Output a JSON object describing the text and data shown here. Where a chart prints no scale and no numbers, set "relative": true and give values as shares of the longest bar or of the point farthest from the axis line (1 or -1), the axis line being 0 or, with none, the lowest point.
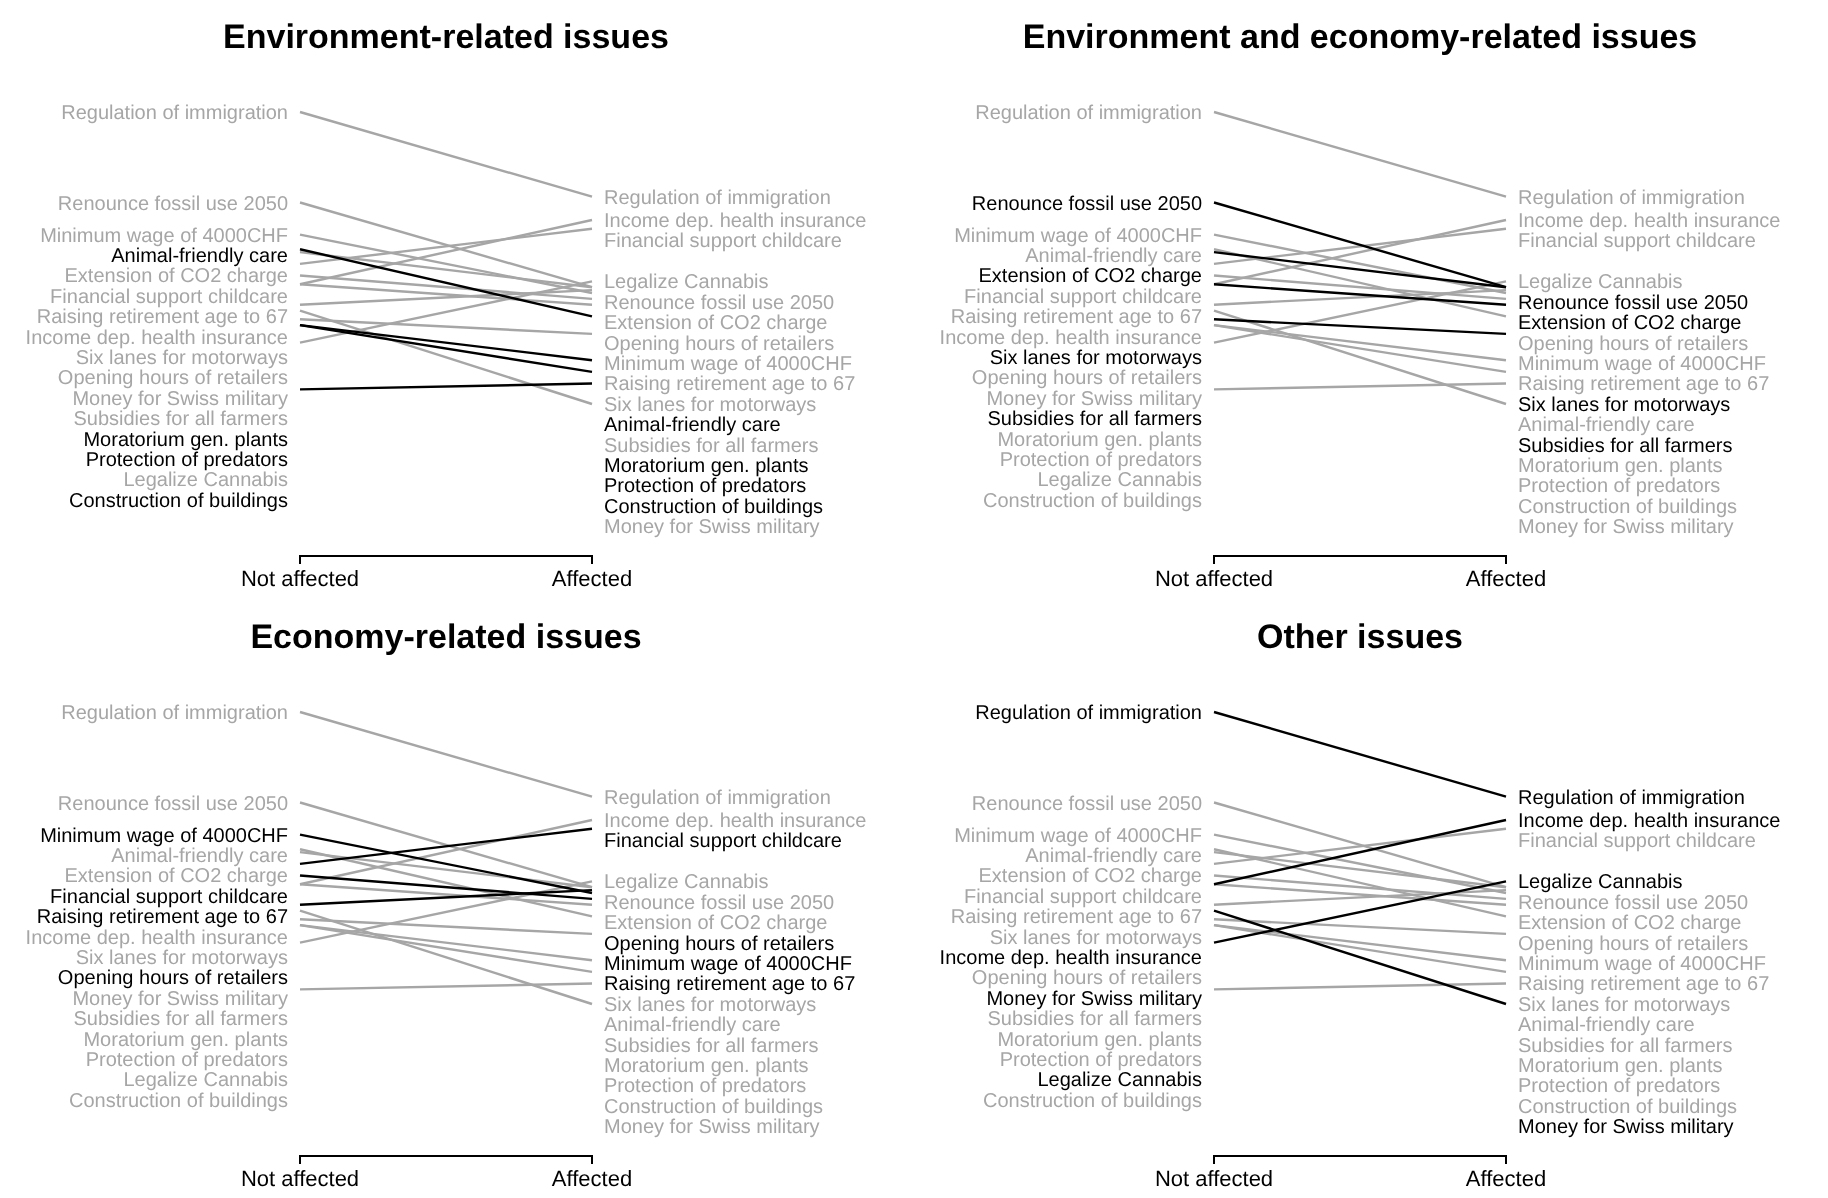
{
  "chart_data": [
    {
      "type": "line",
      "title": "Environment-related issues",
      "categories": [
        "Not affected",
        "Affected"
      ],
      "relative": true,
      "series": [
        {
          "name": "Regulation of immigration",
          "color": "#a6a6a6",
          "values": [
            1.0,
            0.71
          ]
        },
        {
          "name": "Renounce fossil use 2050",
          "color": "#a6a6a6",
          "values": [
            0.69,
            0.4
          ]
        },
        {
          "name": "Minimum wage of 4000CHF",
          "color": "#a6a6a6",
          "values": [
            0.58,
            0.38
          ]
        },
        {
          "name": "Extension of CO2 charge",
          "color": "#a6a6a6",
          "values": [
            0.52,
            0.4
          ]
        },
        {
          "name": "Financial support childcare",
          "color": "#a6a6a6",
          "values": [
            0.48,
            0.6
          ]
        },
        {
          "name": "Raising retirement age to 67",
          "color": "#a6a6a6",
          "values": [
            0.44,
            0.36
          ]
        },
        {
          "name": "Income dep. health insurance",
          "color": "#a6a6a6",
          "values": [
            0.41,
            0.63
          ]
        },
        {
          "name": "Six lanes for motorways",
          "color": "#a6a6a6",
          "values": [
            0.41,
            0.34
          ]
        },
        {
          "name": "Opening hours of retailers",
          "color": "#a6a6a6",
          "values": [
            0.34,
            0.39
          ]
        },
        {
          "name": "Subsidies for all farmers",
          "color": "#a6a6a6",
          "values": [
            0.29,
            0.24
          ]
        },
        {
          "name": "Money for Swiss military",
          "color": "#a6a6a6",
          "values": [
            0.32,
            0
          ]
        },
        {
          "name": "Legalize Cannabis",
          "color": "#a6a6a6",
          "values": [
            0.21,
            0.42
          ]
        },
        {
          "name": "Animal-friendly care",
          "color": "#000000",
          "values": [
            0.53,
            0.3
          ]
        },
        {
          "name": "Moratorium gen. plants",
          "color": "#000000",
          "values": [
            0.27,
            0.15
          ]
        },
        {
          "name": "Protection of predators",
          "color": "#000000",
          "values": [
            0.27,
            0.11
          ]
        },
        {
          "name": "Construction of buildings",
          "color": "#000000",
          "values": [
            0.05,
            0.07
          ]
        }
      ]
    },
    {
      "type": "line",
      "title": "Environment and economy-related issues",
      "categories": [
        "Not affected",
        "Affected"
      ],
      "relative": true,
      "series": [
        {
          "name": "Regulation of immigration",
          "color": "#a6a6a6",
          "values": [
            1.0,
            0.71
          ]
        },
        {
          "name": "Minimum wage of 4000CHF",
          "color": "#a6a6a6",
          "values": [
            0.58,
            0.38
          ]
        },
        {
          "name": "Financial support childcare",
          "color": "#a6a6a6",
          "values": [
            0.48,
            0.6
          ]
        },
        {
          "name": "Raising retirement age to 67",
          "color": "#a6a6a6",
          "values": [
            0.44,
            0.36
          ]
        },
        {
          "name": "Income dep. health insurance",
          "color": "#a6a6a6",
          "values": [
            0.41,
            0.63
          ]
        },
        {
          "name": "Animal-friendly care",
          "color": "#a6a6a6",
          "values": [
            0.53,
            0.3
          ]
        },
        {
          "name": "Opening hours of retailers",
          "color": "#a6a6a6",
          "values": [
            0.34,
            0.39
          ]
        },
        {
          "name": "Moratorium gen. plants",
          "color": "#a6a6a6",
          "values": [
            0.27,
            0.15
          ]
        },
        {
          "name": "Protection of predators",
          "color": "#a6a6a6",
          "values": [
            0.27,
            0.11
          ]
        },
        {
          "name": "Money for Swiss military",
          "color": "#a6a6a6",
          "values": [
            0.32,
            0
          ]
        },
        {
          "name": "Legalize Cannabis",
          "color": "#a6a6a6",
          "values": [
            0.21,
            0.42
          ]
        },
        {
          "name": "Construction of buildings",
          "color": "#a6a6a6",
          "values": [
            0.05,
            0.07
          ]
        },
        {
          "name": "Renounce fossil use 2050",
          "color": "#000000",
          "values": [
            0.69,
            0.4
          ]
        },
        {
          "name": "Extension of CO2 charge",
          "color": "#000000",
          "values": [
            0.52,
            0.4
          ]
        },
        {
          "name": "Six lanes for motorways",
          "color": "#000000",
          "values": [
            0.41,
            0.34
          ]
        },
        {
          "name": "Subsidies for all farmers",
          "color": "#000000",
          "values": [
            0.29,
            0.24
          ]
        }
      ]
    },
    {
      "type": "line",
      "title": "Economy-related issues",
      "categories": [
        "Not affected",
        "Affected"
      ],
      "relative": true,
      "series": [
        {
          "name": "Regulation of immigration",
          "color": "#a6a6a6",
          "values": [
            1.0,
            0.71
          ]
        },
        {
          "name": "Renounce fossil use 2050",
          "color": "#a6a6a6",
          "values": [
            0.69,
            0.4
          ]
        },
        {
          "name": "Extension of CO2 charge",
          "color": "#a6a6a6",
          "values": [
            0.52,
            0.4
          ]
        },
        {
          "name": "Income dep. health insurance",
          "color": "#a6a6a6",
          "values": [
            0.41,
            0.63
          ]
        },
        {
          "name": "Six lanes for motorways",
          "color": "#a6a6a6",
          "values": [
            0.41,
            0.34
          ]
        },
        {
          "name": "Animal-friendly care",
          "color": "#a6a6a6",
          "values": [
            0.53,
            0.3
          ]
        },
        {
          "name": "Moratorium gen. plants",
          "color": "#a6a6a6",
          "values": [
            0.27,
            0.15
          ]
        },
        {
          "name": "Protection of predators",
          "color": "#a6a6a6",
          "values": [
            0.27,
            0.11
          ]
        },
        {
          "name": "Subsidies for all farmers",
          "color": "#a6a6a6",
          "values": [
            0.29,
            0.24
          ]
        },
        {
          "name": "Money for Swiss military",
          "color": "#a6a6a6",
          "values": [
            0.32,
            0
          ]
        },
        {
          "name": "Legalize Cannabis",
          "color": "#a6a6a6",
          "values": [
            0.21,
            0.42
          ]
        },
        {
          "name": "Construction of buildings",
          "color": "#a6a6a6",
          "values": [
            0.05,
            0.07
          ]
        },
        {
          "name": "Minimum wage of 4000CHF",
          "color": "#000000",
          "values": [
            0.58,
            0.38
          ]
        },
        {
          "name": "Financial support childcare",
          "color": "#000000",
          "values": [
            0.48,
            0.6
          ]
        },
        {
          "name": "Raising retirement age to 67",
          "color": "#000000",
          "values": [
            0.44,
            0.36
          ]
        },
        {
          "name": "Opening hours of retailers",
          "color": "#000000",
          "values": [
            0.34,
            0.39
          ]
        }
      ]
    },
    {
      "type": "line",
      "title": "Other issues",
      "categories": [
        "Not affected",
        "Affected"
      ],
      "relative": true,
      "series": [
        {
          "name": "Renounce fossil use 2050",
          "color": "#a6a6a6",
          "values": [
            0.69,
            0.4
          ]
        },
        {
          "name": "Minimum wage of 4000CHF",
          "color": "#a6a6a6",
          "values": [
            0.58,
            0.38
          ]
        },
        {
          "name": "Extension of CO2 charge",
          "color": "#a6a6a6",
          "values": [
            0.52,
            0.4
          ]
        },
        {
          "name": "Financial support childcare",
          "color": "#a6a6a6",
          "values": [
            0.48,
            0.6
          ]
        },
        {
          "name": "Raising retirement age to 67",
          "color": "#a6a6a6",
          "values": [
            0.44,
            0.36
          ]
        },
        {
          "name": "Six lanes for motorways",
          "color": "#a6a6a6",
          "values": [
            0.41,
            0.34
          ]
        },
        {
          "name": "Animal-friendly care",
          "color": "#a6a6a6",
          "values": [
            0.53,
            0.3
          ]
        },
        {
          "name": "Opening hours of retailers",
          "color": "#a6a6a6",
          "values": [
            0.34,
            0.39
          ]
        },
        {
          "name": "Moratorium gen. plants",
          "color": "#a6a6a6",
          "values": [
            0.27,
            0.15
          ]
        },
        {
          "name": "Protection of predators",
          "color": "#a6a6a6",
          "values": [
            0.27,
            0.11
          ]
        },
        {
          "name": "Subsidies for all farmers",
          "color": "#a6a6a6",
          "values": [
            0.29,
            0.24
          ]
        },
        {
          "name": "Construction of buildings",
          "color": "#a6a6a6",
          "values": [
            0.05,
            0.07
          ]
        },
        {
          "name": "Regulation of immigration",
          "color": "#000000",
          "values": [
            1.0,
            0.71
          ]
        },
        {
          "name": "Income dep. health insurance",
          "color": "#000000",
          "values": [
            0.41,
            0.63
          ]
        },
        {
          "name": "Money for Swiss military",
          "color": "#000000",
          "values": [
            0.32,
            0
          ]
        },
        {
          "name": "Legalize Cannabis",
          "color": "#000000",
          "values": [
            0.21,
            0.42
          ]
        }
      ]
    }
  ]
}
